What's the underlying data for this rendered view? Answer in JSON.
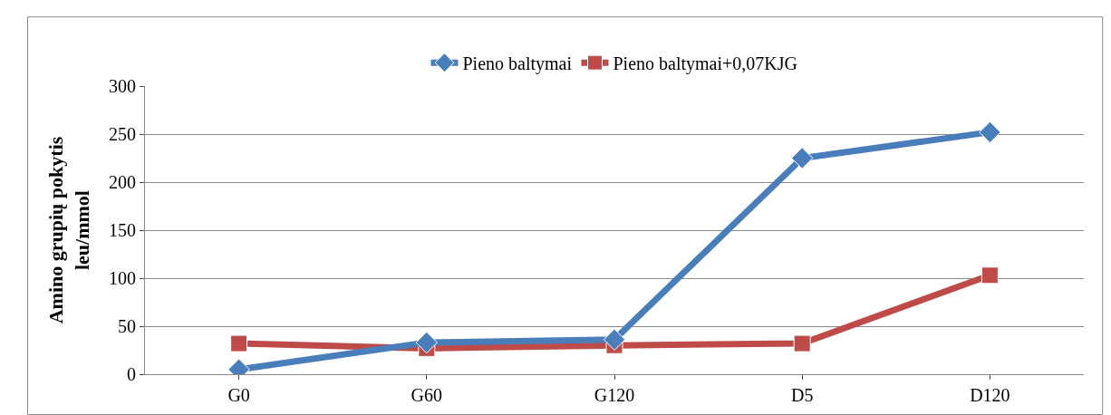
{
  "chart_data": {
    "type": "line",
    "ylabel": "Amino grupių pokytis\nleu/mmol",
    "categories": [
      "G0",
      "G60",
      "G120",
      "D5",
      "D120"
    ],
    "series": [
      {
        "name": "Pieno baltymai",
        "color": "#4a7ebb",
        "marker": "diamond",
        "values": [
          5,
          33,
          36,
          225,
          252
        ]
      },
      {
        "name": "Pieno baltymai+0,07KJG",
        "color": "#be4b48",
        "marker": "square",
        "values": [
          32,
          27,
          30,
          32,
          103
        ]
      }
    ],
    "ylim": [
      0,
      300
    ],
    "yticks": [
      0,
      50,
      100,
      150,
      200,
      250,
      300
    ],
    "grid": "y",
    "legend": "top",
    "line_style": "solid"
  }
}
